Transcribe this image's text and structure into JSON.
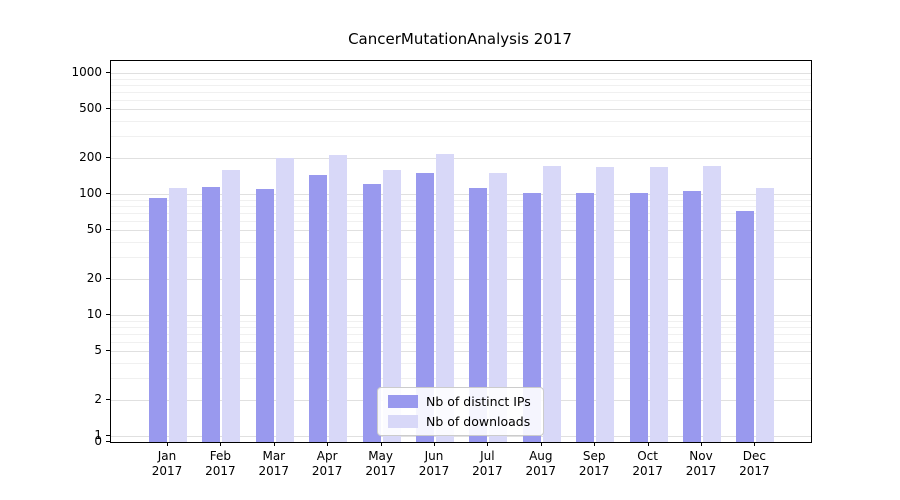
{
  "title": "CancerMutationAnalysis 2017",
  "chart_data": {
    "type": "bar",
    "title": "CancerMutationAnalysis 2017",
    "scale": "symlog",
    "grid": true,
    "legend_position": "lower center",
    "categories": [
      "Jan 2017",
      "Feb 2017",
      "Mar 2017",
      "Apr 2017",
      "May 2017",
      "Jun 2017",
      "Jul 2017",
      "Aug 2017",
      "Sep 2017",
      "Oct 2017",
      "Nov 2017",
      "Dec 2017"
    ],
    "series": [
      {
        "name": "Nb of distinct IPs",
        "color": "#9999ee",
        "values": [
          93,
          114,
          110,
          145,
          120,
          148,
          112,
          102,
          102,
          102,
          106,
          73
        ]
      },
      {
        "name": "Nb of downloads",
        "color": "#d8d8f8",
        "values": [
          113,
          158,
          197,
          210,
          158,
          213,
          150,
          172,
          168,
          168,
          172,
          112
        ]
      }
    ],
    "y_ticks": [
      0,
      1,
      2,
      5,
      10,
      20,
      50,
      100,
      200,
      500,
      1000
    ],
    "ylim": [
      0,
      1300
    ],
    "xlabel": "",
    "ylabel": ""
  }
}
